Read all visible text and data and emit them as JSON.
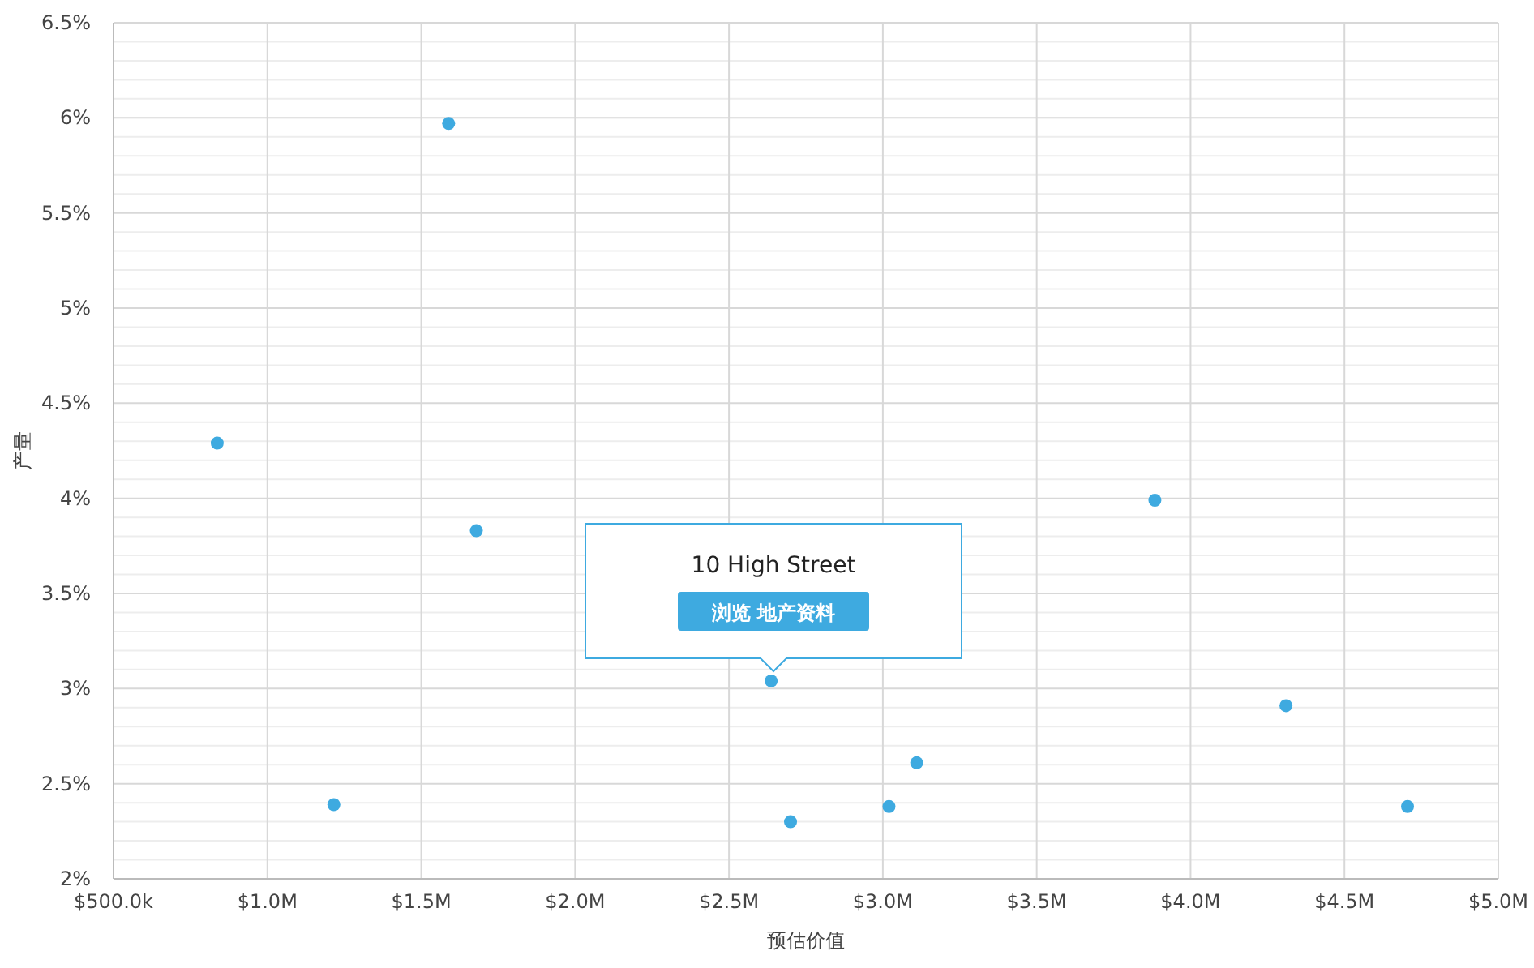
{
  "chart_data": {
    "type": "scatter",
    "xlabel": "预估价值",
    "ylabel": "产量",
    "x": [
      837000,
      1589000,
      1679000,
      1216000,
      2637000,
      2700000,
      3020000,
      3110000,
      3884000,
      4310000,
      4705000
    ],
    "values": [
      4.29,
      5.97,
      3.83,
      2.39,
      3.04,
      2.3,
      2.38,
      2.61,
      3.99,
      2.91,
      2.38
    ],
    "color": "#3eaae0",
    "marker": "circle",
    "grid": true,
    "legend": false,
    "xlim": [
      500000,
      5000000
    ],
    "xticks": [
      {
        "value": 500000,
        "label": "$500.0k"
      },
      {
        "value": 1000000,
        "label": "$1.0M"
      },
      {
        "value": 1500000,
        "label": "$1.5M"
      },
      {
        "value": 2000000,
        "label": "$2.0M"
      },
      {
        "value": 2500000,
        "label": "$2.5M"
      },
      {
        "value": 3000000,
        "label": "$3.0M"
      },
      {
        "value": 3500000,
        "label": "$3.5M"
      },
      {
        "value": 4000000,
        "label": "$4.0M"
      },
      {
        "value": 4500000,
        "label": "$4.5M"
      },
      {
        "value": 5000000,
        "label": "$5.0M"
      }
    ],
    "ylim": [
      2,
      6.5
    ],
    "yticks": [
      {
        "value": 2,
        "label": "2%"
      },
      {
        "value": 2.5,
        "label": "2.5%"
      },
      {
        "value": 3,
        "label": "3%"
      },
      {
        "value": 3.5,
        "label": "3.5%"
      },
      {
        "value": 4,
        "label": "4%"
      },
      {
        "value": 4.5,
        "label": "4.5%"
      },
      {
        "value": 5,
        "label": "5%"
      },
      {
        "value": 5.5,
        "label": "5.5%"
      },
      {
        "value": 6,
        "label": "6%"
      },
      {
        "value": 6.5,
        "label": "6.5%"
      }
    ],
    "annotations": [
      "10 High Street",
      "浏览 地产资料"
    ]
  }
}
